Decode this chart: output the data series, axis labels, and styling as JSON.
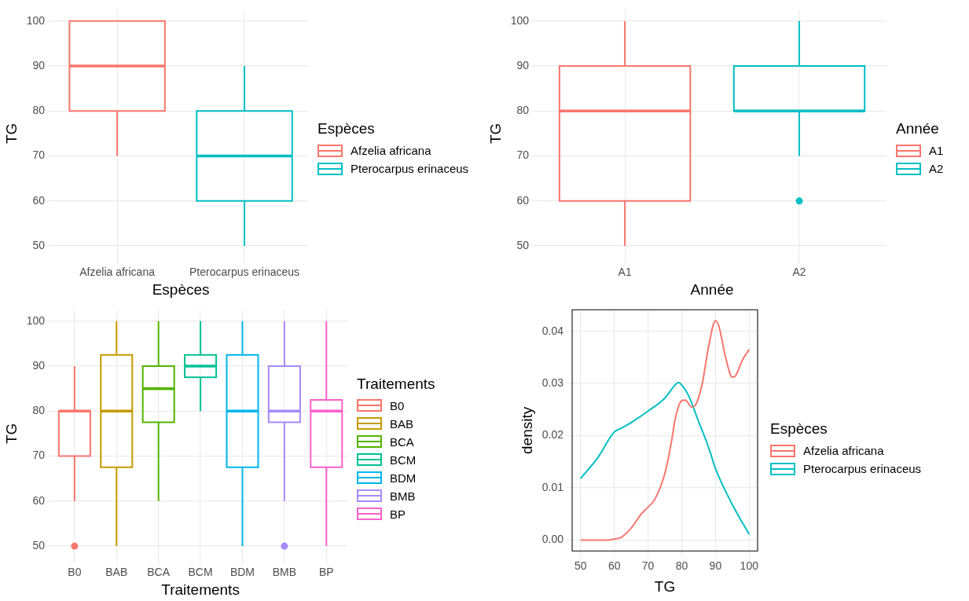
{
  "chart_data": [
    {
      "type": "box",
      "xlabel": "Espèces",
      "ylabel": "TG",
      "legend_title": "Espèces",
      "legend": "right",
      "grid": true,
      "categories": [
        "Afzelia africana",
        "Pterocarpus erinaceus"
      ],
      "series": [
        {
          "name": "Afzelia africana",
          "color": "#f8766d",
          "boxes": [
            {
              "low": 70,
              "q1": 80,
              "median": 90,
              "q3": 100,
              "high": 100
            },
            null
          ]
        },
        {
          "name": "Pterocarpus erinaceus",
          "color": "#00bfc4",
          "boxes": [
            null,
            {
              "low": 50,
              "q1": 60,
              "median": 70,
              "q3": 80,
              "high": 90
            }
          ]
        }
      ],
      "ylim": [
        47.5,
        102.5
      ],
      "yticks": [
        50,
        60,
        70,
        80,
        90,
        100
      ]
    },
    {
      "type": "box",
      "xlabel": "Année",
      "ylabel": "TG",
      "legend_title": "Année",
      "legend": "right",
      "grid": true,
      "categories": [
        "A1",
        "A2"
      ],
      "series": [
        {
          "name": "A1",
          "color": "#f8766d",
          "boxes": [
            {
              "low": 50,
              "q1": 60,
              "median": 80,
              "q3": 90,
              "high": 100
            },
            null
          ]
        },
        {
          "name": "A2",
          "color": "#00bfc4",
          "boxes": [
            null,
            {
              "low": 70,
              "q1": 80,
              "median": 80,
              "q3": 90,
              "high": 100,
              "outliers": [
                60
              ]
            }
          ]
        }
      ],
      "ylim": [
        47.5,
        102.5
      ],
      "yticks": [
        50,
        60,
        70,
        80,
        90,
        100
      ]
    },
    {
      "type": "box",
      "xlabel": "Traitements",
      "ylabel": "TG",
      "legend_title": "Traitements",
      "legend": "right",
      "grid": true,
      "categories": [
        "B0",
        "BAB",
        "BCA",
        "BCM",
        "BDM",
        "BMB",
        "BP"
      ],
      "series": [
        {
          "name": "B0",
          "color": "#f8766d",
          "boxes": [
            {
              "low": 60,
              "q1": 70,
              "median": 80,
              "q3": 80,
              "high": 90,
              "outliers": [
                50
              ]
            },
            null,
            null,
            null,
            null,
            null,
            null
          ]
        },
        {
          "name": "BAB",
          "color": "#c49a00",
          "boxes": [
            null,
            {
              "low": 50,
              "q1": 67.5,
              "median": 80,
              "q3": 92.5,
              "high": 100
            },
            null,
            null,
            null,
            null,
            null
          ]
        },
        {
          "name": "BCA",
          "color": "#53b400",
          "boxes": [
            null,
            null,
            {
              "low": 60,
              "q1": 77.5,
              "median": 85,
              "q3": 90,
              "high": 100
            },
            null,
            null,
            null,
            null
          ]
        },
        {
          "name": "BCM",
          "color": "#00c094",
          "boxes": [
            null,
            null,
            null,
            {
              "low": 80,
              "q1": 87.5,
              "median": 90,
              "q3": 92.5,
              "high": 100
            },
            null,
            null,
            null
          ]
        },
        {
          "name": "BDM",
          "color": "#00b6eb",
          "boxes": [
            null,
            null,
            null,
            null,
            {
              "low": 50,
              "q1": 67.5,
              "median": 80,
              "q3": 92.5,
              "high": 100
            },
            null,
            null
          ]
        },
        {
          "name": "BMB",
          "color": "#a58aff",
          "boxes": [
            null,
            null,
            null,
            null,
            null,
            {
              "low": 60,
              "q1": 77.5,
              "median": 80,
              "q3": 90,
              "high": 100,
              "outliers": [
                50
              ]
            },
            null
          ]
        },
        {
          "name": "BP",
          "color": "#fb61c9",
          "boxes": [
            null,
            null,
            null,
            null,
            null,
            null,
            {
              "low": 50,
              "q1": 67.5,
              "median": 80,
              "q3": 82.5,
              "high": 100
            }
          ]
        }
      ],
      "ylim": [
        47.5,
        102.5
      ],
      "yticks": [
        50,
        60,
        70,
        80,
        90,
        100
      ]
    },
    {
      "type": "line",
      "xlabel": "TG",
      "ylabel": "density",
      "legend_title": "Espèces",
      "legend": "right",
      "grid": true,
      "marker": "none",
      "series": [
        {
          "name": "Afzelia africana",
          "color": "#f8766d",
          "x": [
            50,
            55,
            58,
            60,
            62,
            65,
            68,
            70,
            72,
            75,
            77,
            78,
            80,
            81,
            83,
            84,
            86,
            88,
            90,
            91,
            93,
            95,
            96,
            98,
            100
          ],
          "values": [
            0,
            0,
            0,
            0.0002,
            0.0005,
            0.0023,
            0.005,
            0.0063,
            0.0078,
            0.0128,
            0.019,
            0.023,
            0.0267,
            0.0268,
            0.0255,
            0.0258,
            0.0297,
            0.0372,
            0.042,
            0.041,
            0.035,
            0.0312,
            0.0315,
            0.0345,
            0.0365
          ]
        },
        {
          "name": "Pterocarpus erinaceus",
          "color": "#00bfc4",
          "x": [
            50,
            55,
            60,
            62,
            65,
            70,
            75,
            78,
            79,
            80,
            82,
            85,
            88,
            90,
            95,
            100
          ],
          "values": [
            0.0118,
            0.0157,
            0.0207,
            0.0214,
            0.0225,
            0.0247,
            0.0272,
            0.0297,
            0.0302,
            0.0297,
            0.0277,
            0.0227,
            0.0177,
            0.0137,
            0.0068,
            0.0011
          ]
        }
      ],
      "xlim": [
        47.5,
        102.5
      ],
      "xticks": [
        50,
        60,
        70,
        80,
        90,
        100
      ],
      "ylim": [
        -0.0021,
        0.0441
      ],
      "yticks": [
        {
          "value": 0,
          "label": "0.00"
        },
        {
          "value": 0.01,
          "label": "0.01"
        },
        {
          "value": 0.02,
          "label": "0.02"
        },
        {
          "value": 0.03,
          "label": "0.03"
        },
        {
          "value": 0.04,
          "label": "0.04"
        }
      ]
    }
  ]
}
